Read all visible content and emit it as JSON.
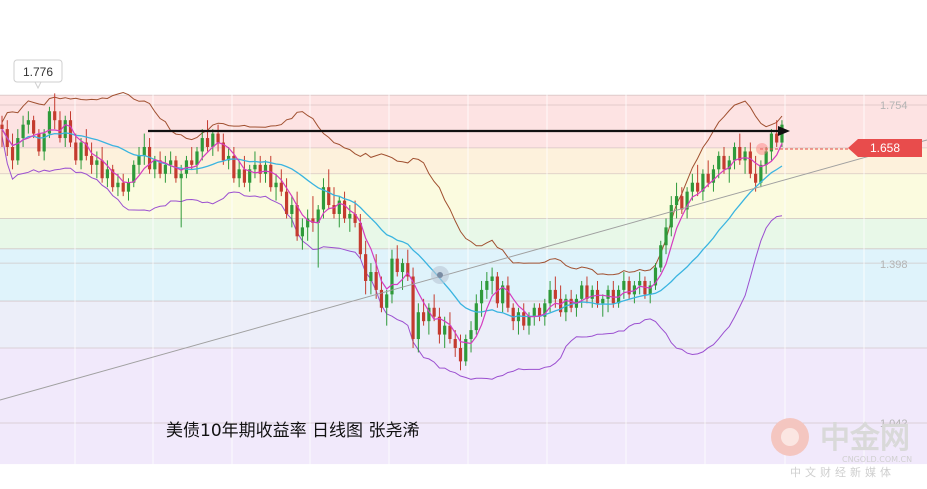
{
  "chart_data": {
    "type": "candlestick",
    "caption": "美债10年期收益率 日线图 张尧浠",
    "current_price": "1.658",
    "high_marker": "1.776",
    "y_ticks": [
      {
        "value": 1.754,
        "label": "1.754"
      },
      {
        "value": 1.398,
        "label": "1.398"
      },
      {
        "value": 1.042,
        "label": "1.042"
      }
    ],
    "fib_levels": [
      1.776,
      1.754,
      1.658,
      1.6,
      1.5,
      1.432,
      1.4,
      1.315,
      1.21,
      1.042
    ],
    "zone_colors": [
      "#fde3e3",
      "#fdf1dc",
      "#fbfbdf",
      "#e8f8e8",
      "#dff3fb",
      "#eceef9",
      "#f1e9fb"
    ],
    "colors": {
      "up": "#2e9a3a",
      "down": "#c43b2f",
      "ma_fast": "#d43cc0",
      "ma_mid": "#3ab4e0",
      "band": "#a05030",
      "band_lower": "#9b4fd0",
      "arrow": "#111111",
      "trend": "#a0a0a0",
      "price_tag": "#e84c4c"
    },
    "ylim": [
      0.95,
      1.83
    ],
    "candles": [
      [
        1.71,
        1.73,
        1.66,
        1.7
      ],
      [
        1.7,
        1.72,
        1.64,
        1.66
      ],
      [
        1.66,
        1.69,
        1.61,
        1.63
      ],
      [
        1.63,
        1.7,
        1.62,
        1.68
      ],
      [
        1.68,
        1.73,
        1.66,
        1.71
      ],
      [
        1.71,
        1.74,
        1.69,
        1.72
      ],
      [
        1.72,
        1.73,
        1.68,
        1.69
      ],
      [
        1.69,
        1.7,
        1.64,
        1.65
      ],
      [
        1.65,
        1.7,
        1.63,
        1.69
      ],
      [
        1.69,
        1.75,
        1.68,
        1.74
      ],
      [
        1.74,
        1.78,
        1.7,
        1.72
      ],
      [
        1.72,
        1.74,
        1.67,
        1.68
      ],
      [
        1.68,
        1.73,
        1.66,
        1.72
      ],
      [
        1.72,
        1.74,
        1.66,
        1.67
      ],
      [
        1.67,
        1.69,
        1.62,
        1.63
      ],
      [
        1.63,
        1.68,
        1.61,
        1.67
      ],
      [
        1.67,
        1.7,
        1.63,
        1.64
      ],
      [
        1.64,
        1.67,
        1.6,
        1.62
      ],
      [
        1.62,
        1.65,
        1.59,
        1.63
      ],
      [
        1.63,
        1.66,
        1.58,
        1.59
      ],
      [
        1.59,
        1.63,
        1.57,
        1.61
      ],
      [
        1.61,
        1.62,
        1.56,
        1.57
      ],
      [
        1.57,
        1.6,
        1.55,
        1.58
      ],
      [
        1.58,
        1.6,
        1.55,
        1.56
      ],
      [
        1.56,
        1.59,
        1.54,
        1.58
      ],
      [
        1.58,
        1.63,
        1.57,
        1.62
      ],
      [
        1.62,
        1.66,
        1.6,
        1.64
      ],
      [
        1.64,
        1.69,
        1.62,
        1.66
      ],
      [
        1.66,
        1.68,
        1.6,
        1.61
      ],
      [
        1.61,
        1.64,
        1.59,
        1.63
      ],
      [
        1.63,
        1.65,
        1.59,
        1.6
      ],
      [
        1.6,
        1.64,
        1.58,
        1.62
      ],
      [
        1.62,
        1.65,
        1.6,
        1.63
      ],
      [
        1.63,
        1.64,
        1.58,
        1.59
      ],
      [
        1.59,
        1.62,
        1.48,
        1.6
      ],
      [
        1.6,
        1.64,
        1.59,
        1.63
      ],
      [
        1.63,
        1.66,
        1.61,
        1.62
      ],
      [
        1.62,
        1.66,
        1.6,
        1.65
      ],
      [
        1.65,
        1.7,
        1.63,
        1.68
      ],
      [
        1.68,
        1.72,
        1.65,
        1.66
      ],
      [
        1.66,
        1.7,
        1.64,
        1.69
      ],
      [
        1.69,
        1.71,
        1.65,
        1.67
      ],
      [
        1.67,
        1.69,
        1.62,
        1.63
      ],
      [
        1.63,
        1.66,
        1.61,
        1.64
      ],
      [
        1.64,
        1.66,
        1.58,
        1.59
      ],
      [
        1.59,
        1.63,
        1.57,
        1.61
      ],
      [
        1.61,
        1.64,
        1.57,
        1.58
      ],
      [
        1.58,
        1.62,
        1.56,
        1.61
      ],
      [
        1.61,
        1.65,
        1.59,
        1.62
      ],
      [
        1.62,
        1.64,
        1.58,
        1.6
      ],
      [
        1.6,
        1.63,
        1.58,
        1.62
      ],
      [
        1.62,
        1.64,
        1.56,
        1.57
      ],
      [
        1.57,
        1.6,
        1.54,
        1.58
      ],
      [
        1.58,
        1.61,
        1.55,
        1.56
      ],
      [
        1.56,
        1.59,
        1.5,
        1.51
      ],
      [
        1.51,
        1.55,
        1.48,
        1.53
      ],
      [
        1.53,
        1.56,
        1.45,
        1.46
      ],
      [
        1.46,
        1.5,
        1.43,
        1.48
      ],
      [
        1.48,
        1.52,
        1.45,
        1.5
      ],
      [
        1.5,
        1.55,
        1.47,
        1.49
      ],
      [
        1.49,
        1.53,
        1.39,
        1.52
      ],
      [
        1.52,
        1.59,
        1.5,
        1.57
      ],
      [
        1.57,
        1.61,
        1.52,
        1.53
      ],
      [
        1.53,
        1.57,
        1.5,
        1.51
      ],
      [
        1.51,
        1.55,
        1.48,
        1.54
      ],
      [
        1.54,
        1.56,
        1.49,
        1.5
      ],
      [
        1.5,
        1.53,
        1.47,
        1.51
      ],
      [
        1.51,
        1.54,
        1.48,
        1.49
      ],
      [
        1.49,
        1.51,
        1.41,
        1.42
      ],
      [
        1.42,
        1.45,
        1.33,
        1.36
      ],
      [
        1.36,
        1.4,
        1.33,
        1.38
      ],
      [
        1.38,
        1.42,
        1.32,
        1.34
      ],
      [
        1.34,
        1.37,
        1.29,
        1.3
      ],
      [
        1.3,
        1.34,
        1.26,
        1.33
      ],
      [
        1.33,
        1.43,
        1.31,
        1.41
      ],
      [
        1.41,
        1.44,
        1.37,
        1.38
      ],
      [
        1.38,
        1.41,
        1.34,
        1.4
      ],
      [
        1.4,
        1.43,
        1.36,
        1.37
      ],
      [
        1.37,
        1.39,
        1.21,
        1.23
      ],
      [
        1.23,
        1.31,
        1.2,
        1.29
      ],
      [
        1.29,
        1.32,
        1.26,
        1.27
      ],
      [
        1.27,
        1.31,
        1.24,
        1.3
      ],
      [
        1.3,
        1.33,
        1.27,
        1.28
      ],
      [
        1.28,
        1.3,
        1.22,
        1.24
      ],
      [
        1.24,
        1.28,
        1.21,
        1.26
      ],
      [
        1.26,
        1.29,
        1.22,
        1.23
      ],
      [
        1.23,
        1.25,
        1.19,
        1.21
      ],
      [
        1.21,
        1.24,
        1.16,
        1.18
      ],
      [
        1.18,
        1.24,
        1.17,
        1.23
      ],
      [
        1.23,
        1.27,
        1.2,
        1.25
      ],
      [
        1.25,
        1.33,
        1.24,
        1.31
      ],
      [
        1.31,
        1.36,
        1.28,
        1.34
      ],
      [
        1.34,
        1.38,
        1.32,
        1.36
      ],
      [
        1.36,
        1.39,
        1.33,
        1.37
      ],
      [
        1.37,
        1.38,
        1.3,
        1.31
      ],
      [
        1.31,
        1.36,
        1.29,
        1.35
      ],
      [
        1.35,
        1.37,
        1.29,
        1.3
      ],
      [
        1.3,
        1.31,
        1.25,
        1.27
      ],
      [
        1.27,
        1.3,
        1.24,
        1.29
      ],
      [
        1.29,
        1.31,
        1.25,
        1.26
      ],
      [
        1.26,
        1.29,
        1.24,
        1.28
      ],
      [
        1.28,
        1.31,
        1.26,
        1.3
      ],
      [
        1.3,
        1.31,
        1.27,
        1.28
      ],
      [
        1.28,
        1.32,
        1.26,
        1.31
      ],
      [
        1.31,
        1.36,
        1.29,
        1.34
      ],
      [
        1.34,
        1.37,
        1.3,
        1.32
      ],
      [
        1.32,
        1.35,
        1.28,
        1.29
      ],
      [
        1.29,
        1.33,
        1.27,
        1.32
      ],
      [
        1.32,
        1.34,
        1.29,
        1.3
      ],
      [
        1.3,
        1.33,
        1.28,
        1.32
      ],
      [
        1.32,
        1.36,
        1.3,
        1.35
      ],
      [
        1.35,
        1.37,
        1.31,
        1.32
      ],
      [
        1.32,
        1.35,
        1.3,
        1.34
      ],
      [
        1.34,
        1.36,
        1.3,
        1.31
      ],
      [
        1.31,
        1.33,
        1.28,
        1.32
      ],
      [
        1.32,
        1.35,
        1.29,
        1.34
      ],
      [
        1.34,
        1.36,
        1.3,
        1.31
      ],
      [
        1.31,
        1.35,
        1.3,
        1.34
      ],
      [
        1.34,
        1.38,
        1.32,
        1.36
      ],
      [
        1.36,
        1.37,
        1.32,
        1.33
      ],
      [
        1.33,
        1.36,
        1.31,
        1.35
      ],
      [
        1.35,
        1.38,
        1.33,
        1.36
      ],
      [
        1.36,
        1.37,
        1.32,
        1.33
      ],
      [
        1.33,
        1.36,
        1.31,
        1.35
      ],
      [
        1.35,
        1.4,
        1.34,
        1.39
      ],
      [
        1.39,
        1.45,
        1.38,
        1.44
      ],
      [
        1.44,
        1.5,
        1.42,
        1.48
      ],
      [
        1.48,
        1.55,
        1.46,
        1.53
      ],
      [
        1.53,
        1.58,
        1.5,
        1.55
      ],
      [
        1.55,
        1.57,
        1.51,
        1.52
      ],
      [
        1.52,
        1.57,
        1.5,
        1.56
      ],
      [
        1.56,
        1.6,
        1.54,
        1.58
      ],
      [
        1.58,
        1.62,
        1.55,
        1.56
      ],
      [
        1.56,
        1.61,
        1.54,
        1.6
      ],
      [
        1.6,
        1.63,
        1.57,
        1.58
      ],
      [
        1.58,
        1.62,
        1.56,
        1.61
      ],
      [
        1.61,
        1.65,
        1.59,
        1.64
      ],
      [
        1.64,
        1.66,
        1.6,
        1.61
      ],
      [
        1.61,
        1.64,
        1.58,
        1.63
      ],
      [
        1.63,
        1.67,
        1.61,
        1.66
      ],
      [
        1.66,
        1.69,
        1.62,
        1.63
      ],
      [
        1.63,
        1.66,
        1.6,
        1.65
      ],
      [
        1.65,
        1.67,
        1.59,
        1.6
      ],
      [
        1.6,
        1.64,
        1.56,
        1.58
      ],
      [
        1.58,
        1.63,
        1.57,
        1.62
      ],
      [
        1.62,
        1.66,
        1.6,
        1.65
      ],
      [
        1.65,
        1.7,
        1.63,
        1.69
      ],
      [
        1.69,
        1.72,
        1.66,
        1.67
      ],
      [
        1.67,
        1.72,
        1.66,
        1.71
      ]
    ]
  },
  "watermark": {
    "brand": "中金网",
    "site": "CNGOLD.COM.CN",
    "tagline": "中文财经新媒体"
  }
}
